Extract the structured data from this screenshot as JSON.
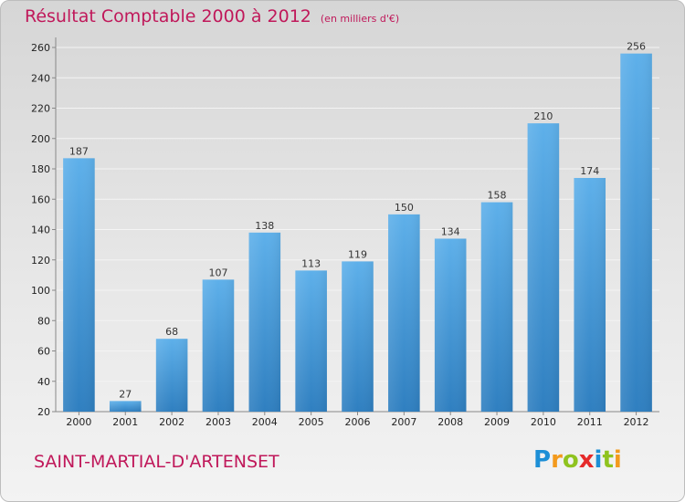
{
  "header": {
    "title": "Résultat Comptable 2000 à 2012",
    "subtitle": "(en milliers d'€)"
  },
  "footer": {
    "commune": "SAINT-MARTIAL-D'ARTENSET",
    "logo": "Proxiti"
  },
  "colors": {
    "title": "#c0185a",
    "bar_top": "#5eb0ea",
    "bar_bottom": "#2f7fc0"
  },
  "chart_data": {
    "type": "bar",
    "title": "Résultat Comptable 2000 à 2012",
    "subtitle": "(en milliers d'€)",
    "categories": [
      "2000",
      "2001",
      "2002",
      "2003",
      "2004",
      "2005",
      "2006",
      "2007",
      "2008",
      "2009",
      "2010",
      "2011",
      "2012"
    ],
    "values": [
      187,
      27,
      68,
      107,
      138,
      113,
      119,
      150,
      134,
      158,
      210,
      174,
      256
    ],
    "data_labels": [
      "187",
      "27",
      "68",
      "107",
      "138",
      "113",
      "119",
      "150",
      "134",
      "158",
      "210",
      "174",
      "256"
    ],
    "yticks": [
      20,
      40,
      60,
      80,
      100,
      120,
      140,
      160,
      180,
      200,
      220,
      240,
      260
    ],
    "ylim": [
      20,
      260
    ],
    "grid": true,
    "legend": "none"
  }
}
